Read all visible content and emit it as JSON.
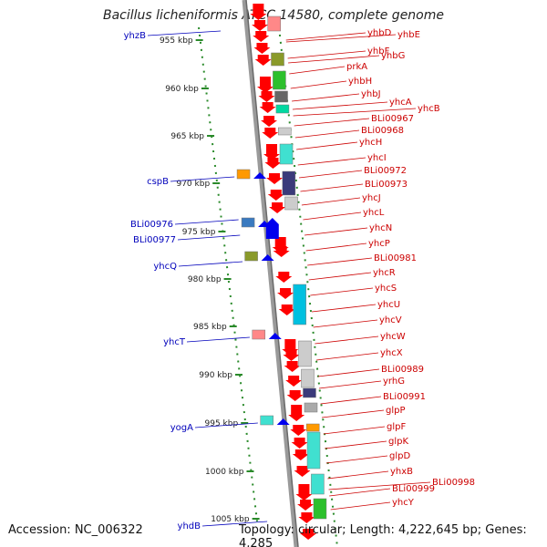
{
  "title": "Bacillus licheniformis ATCC 14580, complete genome",
  "footer": {
    "accession": "Accession: NC_006322",
    "summary": "Topology: circular; Length: 4,222,645 bp; Genes: 4,285"
  },
  "colors": {
    "forward_gene": "#ff0000",
    "reverse_gene": "#0000ee",
    "forward_label": "#cc0000",
    "reverse_label": "#0000bb",
    "scale_dots": "#2a8a2a",
    "backbone": "#8a8a8a"
  },
  "scale": {
    "unit": "kbp",
    "ticks": [
      "955 kbp",
      "960 kbp",
      "965 kbp",
      "970 kbp",
      "975 kbp",
      "980 kbp",
      "985 kbp",
      "990 kbp",
      "995 kbp",
      "1000 kbp",
      "1005 kbp"
    ]
  },
  "forward_labels": [
    "yhbD",
    "yhbE",
    "yhbF",
    "yhbG",
    "prkA",
    "yhbH",
    "yhbJ",
    "yhcA",
    "yhcB",
    "BLi00967",
    "BLi00968",
    "yhcH",
    "yhcI",
    "BLi00972",
    "BLi00973",
    "yhcJ",
    "yhcL",
    "yhcN",
    "yhcP",
    "BLi00981",
    "yhcR",
    "yhcS",
    "yhcU",
    "yhcV",
    "yhcW",
    "yhcX",
    "BLi00989",
    "yrhG",
    "BLi00991",
    "glpP",
    "glpF",
    "glpK",
    "glpD",
    "yhxB",
    "BLi00998",
    "BLi00999",
    "yhcY"
  ],
  "reverse_labels": [
    "yhzB",
    "cspB",
    "BLi00976",
    "BLi00977",
    "yhcQ",
    "yhcT",
    "yogA",
    "yhdB"
  ]
}
